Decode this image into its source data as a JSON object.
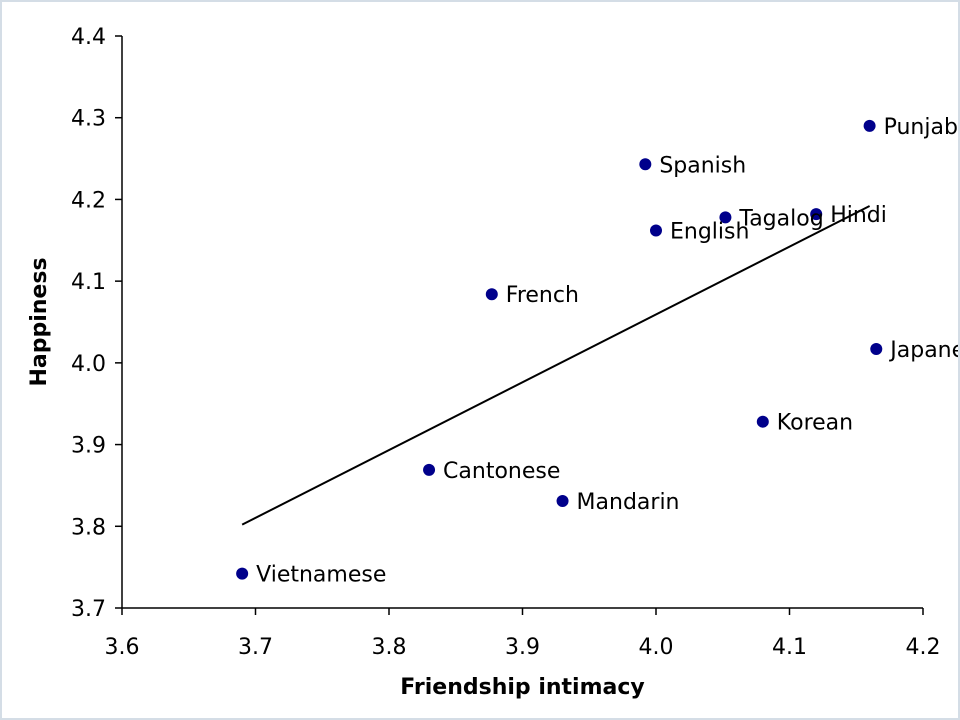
{
  "chart_data": {
    "type": "scatter",
    "title": "",
    "xlabel": "Friendship intimacy",
    "ylabel": "Happiness",
    "xlim": [
      3.6,
      4.2
    ],
    "ylim": [
      3.7,
      4.4
    ],
    "x_ticks": [
      "3.6",
      "3.7",
      "3.8",
      "3.9",
      "4.0",
      "4.1",
      "4.2"
    ],
    "y_ticks": [
      "3.7",
      "3.8",
      "3.9",
      "4.0",
      "4.1",
      "4.2",
      "4.3",
      "4.4"
    ],
    "grid": false,
    "point_color": "#00008b",
    "line_color": "#000000",
    "points": [
      {
        "label": "Punjabi",
        "x": 4.16,
        "y": 4.29
      },
      {
        "label": "Spanish",
        "x": 3.992,
        "y": 4.243
      },
      {
        "label": "Hindi",
        "x": 4.12,
        "y": 4.182
      },
      {
        "label": "Tagalog",
        "x": 4.052,
        "y": 4.178
      },
      {
        "label": "English",
        "x": 4.0,
        "y": 4.162
      },
      {
        "label": "French",
        "x": 3.877,
        "y": 4.084
      },
      {
        "label": "Japanese",
        "x": 4.165,
        "y": 4.017
      },
      {
        "label": "Korean",
        "x": 4.08,
        "y": 3.928
      },
      {
        "label": "Cantonese",
        "x": 3.83,
        "y": 3.869
      },
      {
        "label": "Mandarin",
        "x": 3.93,
        "y": 3.831
      },
      {
        "label": "Vietnamese",
        "x": 3.69,
        "y": 3.742
      }
    ],
    "trendline": {
      "x": [
        3.69,
        4.16
      ],
      "y": [
        3.802,
        4.192
      ]
    }
  }
}
